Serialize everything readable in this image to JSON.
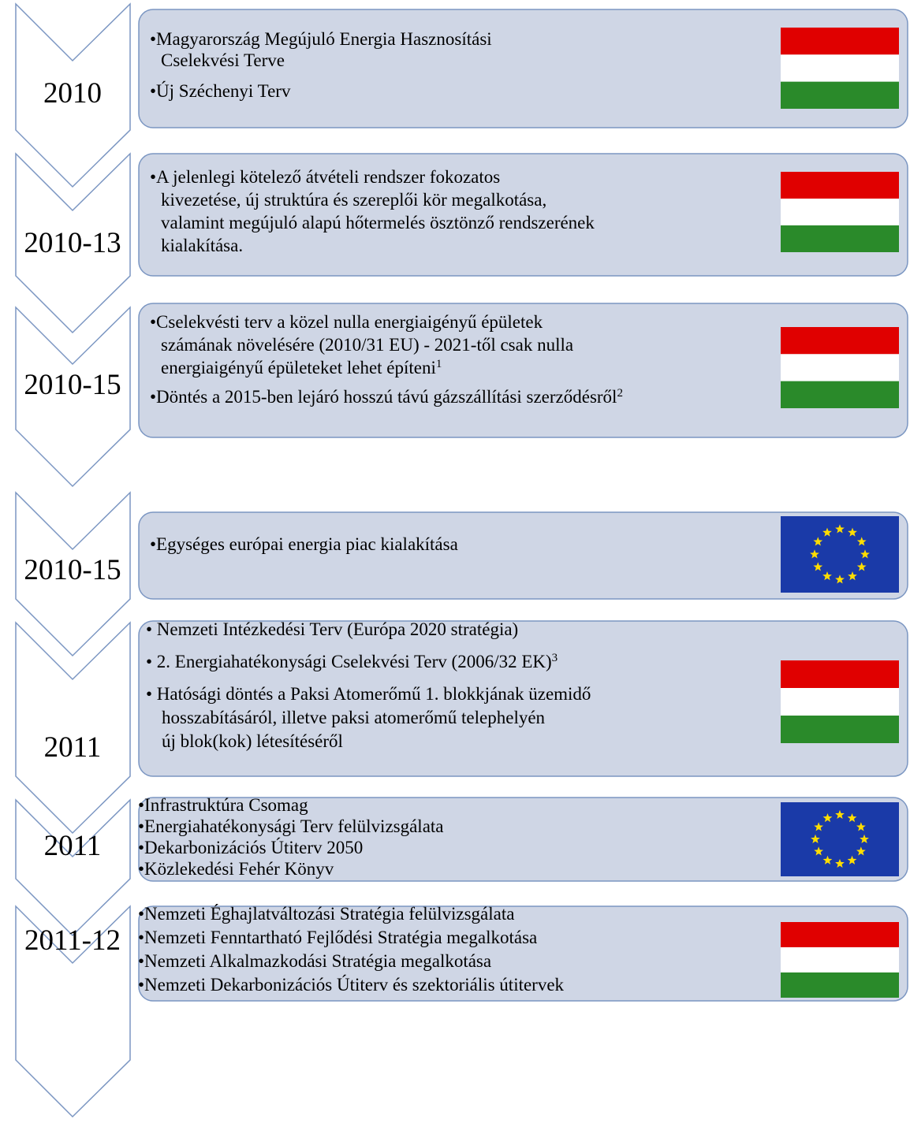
{
  "rows": [
    {
      "year": "2010",
      "bullets": [
        {
          "lines": [
            "•Magyarország Megújuló Energia Hasznosítási",
            "Cselekvési Terve"
          ]
        },
        {
          "lines": [
            "•Új Széchenyi Terv"
          ]
        }
      ]
    },
    {
      "year": "2010-13",
      "bullets": [
        {
          "lines": [
            "•A jelenlegi kötelező átvételi rendszer fokozatos",
            "kivezetése, új struktúra és szereplői kör megalkotása,",
            "valamint megújuló alapú hőtermelés ösztönző rendszerének",
            "kialakítása."
          ]
        }
      ]
    },
    {
      "year": "2010-15",
      "bullets": [
        {
          "lines": [
            "•Cselekvésti terv a közel nulla energiaigényű épületek",
            "számának növelésére (2010/31 EU)  - 2021-től csak nulla",
            "energiaigényű épületeket lehet építeni"
          ],
          "sup": "1"
        },
        {
          "lines": [
            "•Döntés a 2015-ben lejáró hosszú távú  gázszállítási szerződésről"
          ],
          "sup": "2"
        }
      ]
    },
    {
      "year": "2010-15",
      "bullets": [
        {
          "lines": [
            "•Egységes európai energia piac kialakítása"
          ]
        }
      ]
    },
    {
      "year": "2011",
      "bullets": [
        {
          "lines": [
            "• Nemzeti Intézkedési Terv (Európa 2020 stratégia)"
          ]
        },
        {
          "lines": [
            "• 2. Energiahatékonysági Cselekvési Terv (2006/32 EK)"
          ],
          "sup": "3"
        },
        {
          "lines": [
            "• Hatósági döntés a Paksi Atomerőmű 1. blokkjának  üzemidő",
            "hosszabításáról, illetve paksi atomerőmű telephelyén",
            "új blok(kok) létesítéséről"
          ]
        }
      ]
    },
    {
      "year": "2011",
      "bullets": [
        {
          "lines": [
            "•Infrastruktúra Csomag"
          ]
        },
        {
          "lines": [
            "•Energiahatékonysági Terv felülvizsgálata"
          ]
        },
        {
          "lines": [
            "•Dekarbonizációs Útiterv 2050"
          ]
        },
        {
          "lines": [
            "•Közlekedési Fehér Könyv"
          ]
        }
      ]
    },
    {
      "year": "2011-12",
      "bullets": [
        {
          "lines": [
            "•Nemzeti Éghajlatváltozási Stratégia felülvizsgálata"
          ]
        },
        {
          "lines": [
            "•Nemzeti Fenntartható Fejlődési Stratégia megalkotása"
          ]
        },
        {
          "lines": [
            "•Nemzeti Alkalmazkodási Stratégia megalkotása"
          ]
        },
        {
          "lines": [
            "•Nemzeti Dekarbonizációs Útiterv és szektoriális útitervek"
          ]
        }
      ]
    }
  ]
}
